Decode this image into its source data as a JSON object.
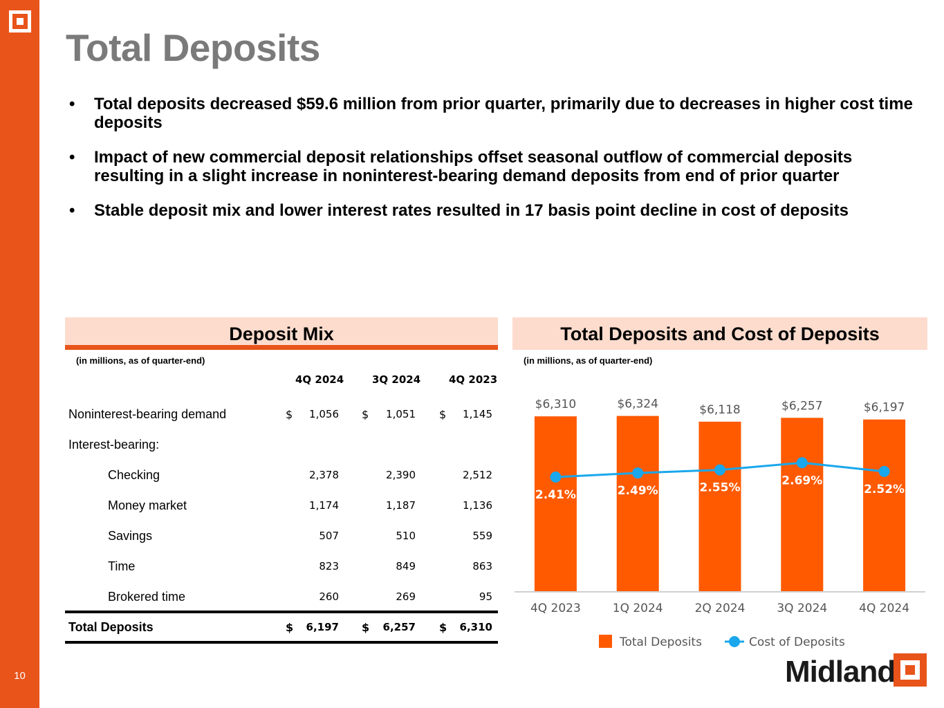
{
  "page_number": "10",
  "title": "Total Deposits",
  "bullets": [
    "Total deposits decreased $59.6 million from prior quarter, primarily due to decreases in higher cost time deposits",
    "Impact of new commercial deposit relationships offset seasonal outflow of commercial deposits resulting in a slight increase in noninterest-bearing demand deposits from end of prior quarter",
    "Stable deposit mix and lower interest rates resulted in 17 basis point decline in cost of deposits"
  ],
  "deposit_mix": {
    "heading": "Deposit Mix",
    "note": "(in millions, as of quarter-end)",
    "columns": [
      "4Q 2024",
      "3Q 2024",
      "4Q 2023"
    ],
    "rows": [
      {
        "label": "Noninterest-bearing demand",
        "indent": false,
        "currency": true,
        "values": [
          "1,056",
          "1,051",
          "1,145"
        ]
      },
      {
        "label": "Interest-bearing:",
        "indent": false,
        "currency": false,
        "values": [
          "",
          "",
          ""
        ]
      },
      {
        "label": "Checking",
        "indent": true,
        "currency": false,
        "values": [
          "2,378",
          "2,390",
          "2,512"
        ]
      },
      {
        "label": "Money market",
        "indent": true,
        "currency": false,
        "values": [
          "1,174",
          "1,187",
          "1,136"
        ]
      },
      {
        "label": "Savings",
        "indent": true,
        "currency": false,
        "values": [
          "507",
          "510",
          "559"
        ]
      },
      {
        "label": "Time",
        "indent": true,
        "currency": false,
        "values": [
          "823",
          "849",
          "863"
        ]
      },
      {
        "label": "Brokered time",
        "indent": true,
        "currency": false,
        "values": [
          "260",
          "269",
          "95"
        ]
      }
    ],
    "total": {
      "label": "Total Deposits",
      "currency_symbol": "$",
      "values": [
        "6,197",
        "6,257",
        "6,310"
      ]
    }
  },
  "chart_panel": {
    "heading": "Total Deposits and Cost of Deposits",
    "note": "(in millions, as of quarter-end)"
  },
  "chart_data": {
    "type": "bar",
    "categories": [
      "4Q 2023",
      "1Q 2024",
      "2Q 2024",
      "3Q 2024",
      "4Q 2024"
    ],
    "series": [
      {
        "name": "Total Deposits",
        "type": "bar",
        "values": [
          6310,
          6324,
          6118,
          6257,
          6197
        ],
        "labels": [
          "$6,310",
          "$6,324",
          "$6,118",
          "$6,257",
          "$6,197"
        ],
        "color": "#FF5A00"
      },
      {
        "name": "Cost of Deposits",
        "type": "line",
        "values": [
          2.41,
          2.49,
          2.55,
          2.69,
          2.52
        ],
        "labels": [
          "2.41%",
          "2.49%",
          "2.55%",
          "2.69%",
          "2.52%"
        ],
        "color": "#1AA7EC"
      }
    ],
    "legend_position": "bottom",
    "grid": false
  },
  "brand": {
    "name": "Midland"
  },
  "colors": {
    "accent": "#E8541A",
    "panel_bg": "#FDDCCD",
    "bar": "#FF5A00",
    "line": "#1AA7EC",
    "title": "#7a7a7a"
  }
}
